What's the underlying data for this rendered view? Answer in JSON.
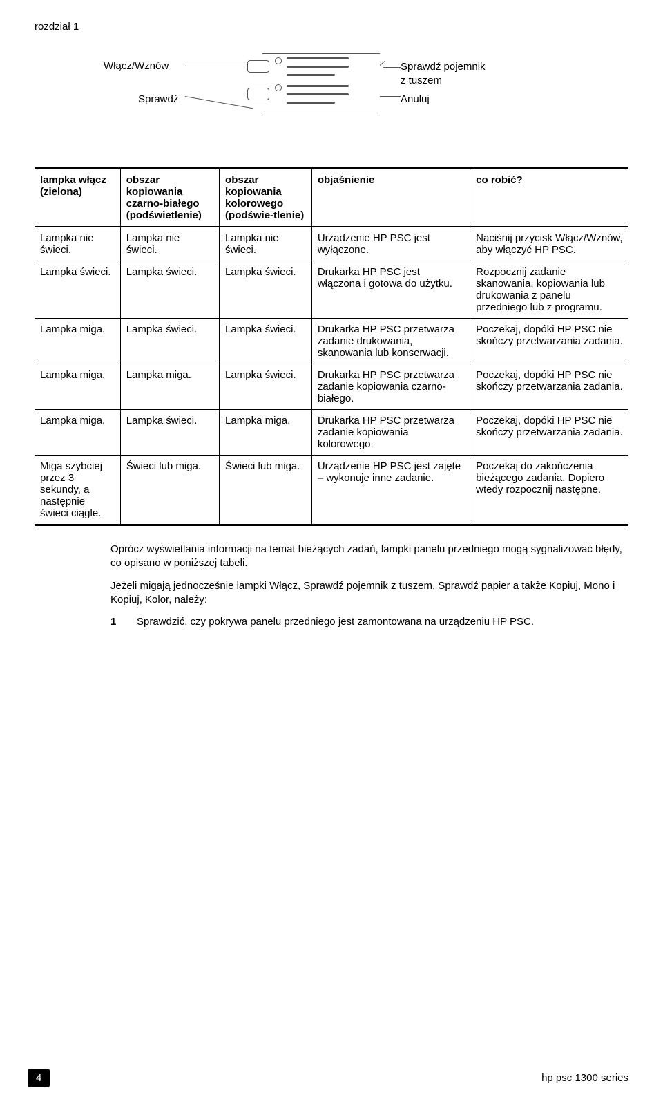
{
  "chapter": "rozdział 1",
  "diagram": {
    "label_top_left": "Włącz/Wznów",
    "label_bottom_left": "Sprawdź",
    "label_top_right": "Sprawdź pojemnik\nz tuszem",
    "label_bottom_right": "Anuluj"
  },
  "table": {
    "headers": [
      "lampka włącz (zielona)",
      "obszar kopiowania czarno-białego (podświetlenie)",
      "obszar kopiowania kolorowego (podświe-tlenie)",
      "objaśnienie",
      "co robić?"
    ],
    "rows": [
      [
        "Lampka nie świeci.",
        "Lampka nie świeci.",
        "Lampka nie świeci.",
        "Urządzenie HP PSC jest wyłączone.",
        "Naciśnij przycisk Włącz/Wznów, aby włączyć HP PSC."
      ],
      [
        "Lampka świeci.",
        "Lampka świeci.",
        "Lampka świeci.",
        "Drukarka HP PSC jest włączona i gotowa do użytku.",
        "Rozpocznij zadanie skanowania, kopiowania lub drukowania z panelu przedniego lub z programu."
      ],
      [
        "Lampka miga.",
        "Lampka świeci.",
        "Lampka świeci.",
        "Drukarka HP PSC przetwarza zadanie drukowania, skanowania lub konserwacji.",
        "Poczekaj, dopóki HP PSC nie skończy przetwarzania zadania."
      ],
      [
        "Lampka miga.",
        "Lampka miga.",
        "Lampka świeci.",
        "Drukarka HP PSC przetwarza zadanie kopiowania czarno-białego.",
        "Poczekaj, dopóki HP PSC nie skończy przetwarzania zadania."
      ],
      [
        "Lampka miga.",
        "Lampka świeci.",
        "Lampka miga.",
        "Drukarka HP PSC przetwarza zadanie kopiowania kolorowego.",
        "Poczekaj, dopóki HP PSC nie skończy przetwarzania zadania."
      ],
      [
        "Miga szybciej przez 3 sekundy, a następnie świeci ciągle.",
        "Świeci lub miga.",
        "Świeci lub miga.",
        "Urządzenie HP PSC jest zajęte – wykonuje inne zadanie.",
        "Poczekaj do zakończenia bieżącego zadania. Dopiero wtedy rozpocznij następne."
      ]
    ]
  },
  "paragraphs": {
    "p1": "Oprócz wyświetlania informacji na temat bieżących zadań, lampki panelu przedniego mogą sygnalizować błędy, co opisano w poniższej tabeli.",
    "p2": "Jeżeli migają jednocześnie lampki Włącz, Sprawdź pojemnik z tuszem, Sprawdź papier a także Kopiuj, Mono i Kopiuj, Kolor, należy:",
    "list_num": "1",
    "list_text": "Sprawdzić, czy pokrywa panelu przedniego jest zamontowana na urządzeniu HP PSC."
  },
  "footer": {
    "page": "4",
    "series": "hp psc 1300 series"
  }
}
